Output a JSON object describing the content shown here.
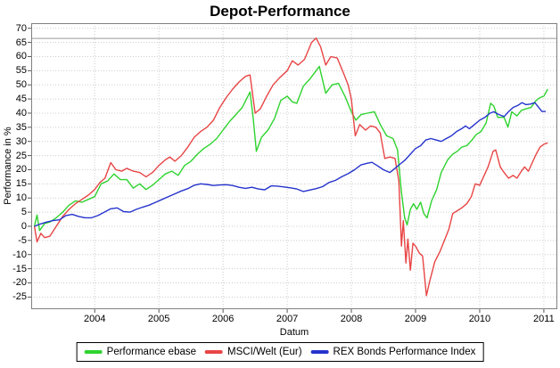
{
  "title": "Depot-Performance",
  "chart_data": {
    "type": "line",
    "title": "Depot-Performance",
    "xlabel": "Datum",
    "ylabel": "Performance in %",
    "xlim": [
      2003.01,
      2011.21
    ],
    "ylim": [
      -29.3,
      71.8
    ],
    "x_ticks": [
      2004,
      2005,
      2006,
      2007,
      2008,
      2009,
      2010,
      2011
    ],
    "y_ticks": [
      70,
      65,
      60,
      55,
      50,
      45,
      40,
      35,
      30,
      25,
      20,
      15,
      10,
      5,
      0,
      -5,
      -10,
      -15,
      -20,
      -25
    ],
    "grid": "dotted",
    "grid_color": "#cccccc",
    "border_color": "#808080",
    "tick_color": "#555555",
    "marker_line_y": 66.4,
    "marker_line_color": "#9a9a9a",
    "legend_position": "bottom",
    "series": [
      {
        "name": "Performance ebase",
        "color": "#2ed32e",
        "points": [
          [
            2003.06,
            0
          ],
          [
            2003.1,
            4
          ],
          [
            2003.14,
            -1.5
          ],
          [
            2003.22,
            1
          ],
          [
            2003.3,
            1.5
          ],
          [
            2003.4,
            3
          ],
          [
            2003.5,
            5
          ],
          [
            2003.6,
            7.5
          ],
          [
            2003.7,
            9
          ],
          [
            2003.8,
            8.5
          ],
          [
            2003.9,
            9.5
          ],
          [
            2004.0,
            10.5
          ],
          [
            2004.1,
            15
          ],
          [
            2004.2,
            16
          ],
          [
            2004.3,
            18.5
          ],
          [
            2004.4,
            16.5
          ],
          [
            2004.5,
            16.5
          ],
          [
            2004.6,
            13.5
          ],
          [
            2004.7,
            15
          ],
          [
            2004.8,
            13
          ],
          [
            2004.9,
            14.5
          ],
          [
            2005.0,
            16.5
          ],
          [
            2005.1,
            18.5
          ],
          [
            2005.2,
            19.5
          ],
          [
            2005.3,
            18
          ],
          [
            2005.4,
            21.5
          ],
          [
            2005.5,
            23
          ],
          [
            2005.6,
            25.5
          ],
          [
            2005.7,
            27.5
          ],
          [
            2005.8,
            29
          ],
          [
            2005.9,
            31
          ],
          [
            2006.0,
            34
          ],
          [
            2006.1,
            37
          ],
          [
            2006.2,
            39.5
          ],
          [
            2006.3,
            42
          ],
          [
            2006.42,
            47.5
          ],
          [
            2006.47,
            38
          ],
          [
            2006.52,
            26.5
          ],
          [
            2006.6,
            31.5
          ],
          [
            2006.7,
            34
          ],
          [
            2006.8,
            38
          ],
          [
            2006.9,
            44.5
          ],
          [
            2007.0,
            46
          ],
          [
            2007.08,
            44
          ],
          [
            2007.15,
            43.5
          ],
          [
            2007.25,
            49.5
          ],
          [
            2007.35,
            52
          ],
          [
            2007.5,
            56.5
          ],
          [
            2007.6,
            47
          ],
          [
            2007.7,
            50
          ],
          [
            2007.8,
            50.5
          ],
          [
            2007.9,
            46
          ],
          [
            2008.0,
            40.5
          ],
          [
            2008.07,
            37.5
          ],
          [
            2008.15,
            39.5
          ],
          [
            2008.25,
            40
          ],
          [
            2008.36,
            40.5
          ],
          [
            2008.45,
            36
          ],
          [
            2008.55,
            32
          ],
          [
            2008.65,
            31
          ],
          [
            2008.72,
            27
          ],
          [
            2008.78,
            12
          ],
          [
            2008.83,
            3
          ],
          [
            2008.87,
            0.5
          ],
          [
            2008.92,
            6
          ],
          [
            2008.97,
            8
          ],
          [
            2009.02,
            6
          ],
          [
            2009.08,
            8.5
          ],
          [
            2009.13,
            4.5
          ],
          [
            2009.18,
            3
          ],
          [
            2009.25,
            9
          ],
          [
            2009.33,
            13
          ],
          [
            2009.4,
            19
          ],
          [
            2009.5,
            23.5
          ],
          [
            2009.58,
            25.5
          ],
          [
            2009.65,
            26.5
          ],
          [
            2009.72,
            28
          ],
          [
            2009.8,
            28.5
          ],
          [
            2009.88,
            30.5
          ],
          [
            2009.95,
            32.5
          ],
          [
            2010.02,
            33.5
          ],
          [
            2010.1,
            36.5
          ],
          [
            2010.17,
            43.5
          ],
          [
            2010.22,
            42.5
          ],
          [
            2010.28,
            38.5
          ],
          [
            2010.38,
            38.5
          ],
          [
            2010.44,
            35
          ],
          [
            2010.5,
            40.5
          ],
          [
            2010.58,
            39
          ],
          [
            2010.65,
            41
          ],
          [
            2010.72,
            41.5
          ],
          [
            2010.8,
            42
          ],
          [
            2010.88,
            44.5
          ],
          [
            2010.94,
            45.5
          ],
          [
            2011.0,
            46
          ],
          [
            2011.06,
            48.5
          ]
        ]
      },
      {
        "name": "MSCI/Welt (Eur)",
        "color": "#e84545",
        "points": [
          [
            2003.06,
            0
          ],
          [
            2003.1,
            -5.5
          ],
          [
            2003.16,
            -2.5
          ],
          [
            2003.22,
            -4
          ],
          [
            2003.3,
            -3.5
          ],
          [
            2003.4,
            0
          ],
          [
            2003.5,
            3.5
          ],
          [
            2003.6,
            6
          ],
          [
            2003.7,
            8
          ],
          [
            2003.8,
            9.5
          ],
          [
            2003.9,
            11
          ],
          [
            2004.0,
            13
          ],
          [
            2004.08,
            15.5
          ],
          [
            2004.16,
            17
          ],
          [
            2004.25,
            22.5
          ],
          [
            2004.33,
            20
          ],
          [
            2004.42,
            19.5
          ],
          [
            2004.5,
            20.5
          ],
          [
            2004.6,
            19.5
          ],
          [
            2004.7,
            19
          ],
          [
            2004.8,
            17.5
          ],
          [
            2004.9,
            19
          ],
          [
            2005.0,
            21.5
          ],
          [
            2005.1,
            23.5
          ],
          [
            2005.17,
            24.5
          ],
          [
            2005.25,
            23
          ],
          [
            2005.35,
            25
          ],
          [
            2005.45,
            28
          ],
          [
            2005.55,
            31.5
          ],
          [
            2005.65,
            33.5
          ],
          [
            2005.75,
            35
          ],
          [
            2005.85,
            37.5
          ],
          [
            2005.95,
            42
          ],
          [
            2006.05,
            45.5
          ],
          [
            2006.15,
            48.5
          ],
          [
            2006.25,
            51
          ],
          [
            2006.35,
            53
          ],
          [
            2006.42,
            53.5
          ],
          [
            2006.5,
            40
          ],
          [
            2006.58,
            41.5
          ],
          [
            2006.68,
            46
          ],
          [
            2006.78,
            50
          ],
          [
            2006.88,
            52.5
          ],
          [
            2007.0,
            55
          ],
          [
            2007.08,
            58.5
          ],
          [
            2007.17,
            57
          ],
          [
            2007.27,
            59
          ],
          [
            2007.38,
            65
          ],
          [
            2007.45,
            66.5
          ],
          [
            2007.52,
            63.5
          ],
          [
            2007.6,
            57
          ],
          [
            2007.68,
            60
          ],
          [
            2007.78,
            59.5
          ],
          [
            2007.88,
            54
          ],
          [
            2007.95,
            50
          ],
          [
            2008.0,
            45
          ],
          [
            2008.06,
            32
          ],
          [
            2008.13,
            36
          ],
          [
            2008.22,
            34
          ],
          [
            2008.3,
            35.5
          ],
          [
            2008.38,
            35
          ],
          [
            2008.45,
            33
          ],
          [
            2008.52,
            24
          ],
          [
            2008.6,
            24.5
          ],
          [
            2008.68,
            24
          ],
          [
            2008.74,
            16
          ],
          [
            2008.78,
            -7
          ],
          [
            2008.81,
            2
          ],
          [
            2008.85,
            -13
          ],
          [
            2008.88,
            -4.5
          ],
          [
            2008.92,
            -15.5
          ],
          [
            2008.96,
            -6
          ],
          [
            2009.0,
            -7
          ],
          [
            2009.06,
            -9.5
          ],
          [
            2009.11,
            -10.5
          ],
          [
            2009.17,
            -24.5
          ],
          [
            2009.22,
            -19.5
          ],
          [
            2009.3,
            -12.5
          ],
          [
            2009.38,
            -9
          ],
          [
            2009.45,
            -5
          ],
          [
            2009.52,
            -1
          ],
          [
            2009.58,
            4.5
          ],
          [
            2009.65,
            5.5
          ],
          [
            2009.72,
            6.5
          ],
          [
            2009.8,
            8
          ],
          [
            2009.87,
            10.5
          ],
          [
            2009.93,
            15
          ],
          [
            2010.0,
            14.5
          ],
          [
            2010.07,
            18
          ],
          [
            2010.13,
            21
          ],
          [
            2010.21,
            26.5
          ],
          [
            2010.25,
            27
          ],
          [
            2010.32,
            21
          ],
          [
            2010.38,
            19
          ],
          [
            2010.45,
            17
          ],
          [
            2010.52,
            18
          ],
          [
            2010.58,
            17
          ],
          [
            2010.65,
            19.5
          ],
          [
            2010.7,
            21
          ],
          [
            2010.76,
            19.5
          ],
          [
            2010.82,
            22.5
          ],
          [
            2010.88,
            25.5
          ],
          [
            2010.94,
            28
          ],
          [
            2011.0,
            29
          ],
          [
            2011.06,
            29.5
          ]
        ]
      },
      {
        "name": "REX Bonds Performance Index",
        "color": "#2533cc",
        "points": [
          [
            2003.06,
            0
          ],
          [
            2003.15,
            0.8
          ],
          [
            2003.25,
            1.5
          ],
          [
            2003.35,
            2
          ],
          [
            2003.45,
            2.3
          ],
          [
            2003.55,
            3.8
          ],
          [
            2003.65,
            4.2
          ],
          [
            2003.75,
            3.5
          ],
          [
            2003.85,
            3
          ],
          [
            2003.95,
            3
          ],
          [
            2004.05,
            3.8
          ],
          [
            2004.15,
            5
          ],
          [
            2004.25,
            6.2
          ],
          [
            2004.35,
            6.5
          ],
          [
            2004.45,
            5.2
          ],
          [
            2004.55,
            5
          ],
          [
            2004.65,
            6
          ],
          [
            2004.75,
            6.8
          ],
          [
            2004.85,
            7.5
          ],
          [
            2004.95,
            8.5
          ],
          [
            2005.05,
            9.5
          ],
          [
            2005.15,
            10.5
          ],
          [
            2005.25,
            11.5
          ],
          [
            2005.35,
            12.5
          ],
          [
            2005.45,
            13.3
          ],
          [
            2005.55,
            14.5
          ],
          [
            2005.65,
            15
          ],
          [
            2005.75,
            14.8
          ],
          [
            2005.85,
            14.4
          ],
          [
            2005.95,
            14.6
          ],
          [
            2006.05,
            14.7
          ],
          [
            2006.15,
            14.4
          ],
          [
            2006.25,
            13.8
          ],
          [
            2006.35,
            13.4
          ],
          [
            2006.45,
            13.8
          ],
          [
            2006.55,
            13.2
          ],
          [
            2006.65,
            12.9
          ],
          [
            2006.75,
            14.3
          ],
          [
            2006.85,
            14.2
          ],
          [
            2006.95,
            13.9
          ],
          [
            2007.05,
            13.6
          ],
          [
            2007.15,
            13.2
          ],
          [
            2007.25,
            12.3
          ],
          [
            2007.35,
            12.8
          ],
          [
            2007.45,
            13.3
          ],
          [
            2007.55,
            14
          ],
          [
            2007.65,
            15.5
          ],
          [
            2007.75,
            16.2
          ],
          [
            2007.85,
            17.5
          ],
          [
            2007.95,
            18.6
          ],
          [
            2008.05,
            20
          ],
          [
            2008.15,
            21.7
          ],
          [
            2008.25,
            22.3
          ],
          [
            2008.32,
            22.6
          ],
          [
            2008.4,
            21.5
          ],
          [
            2008.5,
            20
          ],
          [
            2008.6,
            19
          ],
          [
            2008.68,
            20.5
          ],
          [
            2008.76,
            22
          ],
          [
            2008.84,
            23.5
          ],
          [
            2008.92,
            25.5
          ],
          [
            2009.0,
            27.5
          ],
          [
            2009.08,
            28.5
          ],
          [
            2009.16,
            30.5
          ],
          [
            2009.24,
            31
          ],
          [
            2009.32,
            30.5
          ],
          [
            2009.4,
            30
          ],
          [
            2009.48,
            31
          ],
          [
            2009.56,
            32
          ],
          [
            2009.64,
            33.5
          ],
          [
            2009.72,
            34.5
          ],
          [
            2009.78,
            35.5
          ],
          [
            2009.84,
            34.5
          ],
          [
            2009.92,
            36
          ],
          [
            2010.0,
            37.5
          ],
          [
            2010.08,
            38.5
          ],
          [
            2010.16,
            40
          ],
          [
            2010.22,
            40.5
          ],
          [
            2010.3,
            39.5
          ],
          [
            2010.38,
            38.8
          ],
          [
            2010.45,
            40.5
          ],
          [
            2010.52,
            42
          ],
          [
            2010.6,
            42.8
          ],
          [
            2010.66,
            43.7
          ],
          [
            2010.72,
            43
          ],
          [
            2010.79,
            43.2
          ],
          [
            2010.86,
            43.7
          ],
          [
            2010.92,
            42
          ],
          [
            2010.97,
            40.6
          ],
          [
            2011.03,
            40.6
          ]
        ]
      }
    ]
  }
}
